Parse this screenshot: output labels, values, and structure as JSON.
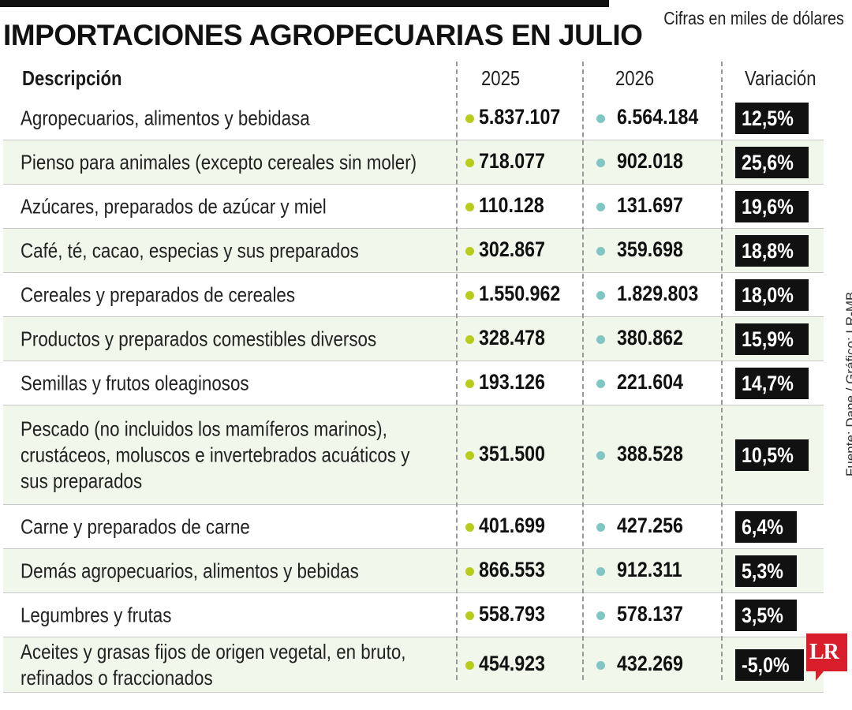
{
  "title": "IMPORTACIONES AGROPECUARIAS EN JULIO",
  "units_note": "Cifras en miles de dólares",
  "source_credit": "Fuente: Dane / Gráfico: LR-MB",
  "logo_text": "LR",
  "colors": {
    "year1_dot": "#b8cc1c",
    "year2_dot": "#7fc6c4",
    "badge_bg": "#111111",
    "alt_row_bg": "#f1f7ea",
    "logo_bg": "#d81e2a"
  },
  "headers": {
    "description": "Descripción",
    "year1": "2025",
    "year2": "2026",
    "variation": "Variación"
  },
  "chart_data": {
    "type": "table",
    "title": "IMPORTACIONES AGROPECUARIAS EN JULIO",
    "columns": [
      "Descripción",
      "2025",
      "2026",
      "Variación"
    ],
    "rows": [
      {
        "description": "Agropecuarios, alimentos y bebidasa",
        "y2025": "5.837.107",
        "y2026": "6.564.184",
        "variation": "12,5%"
      },
      {
        "description": "Pienso para animales (excepto cereales sin moler)",
        "y2025": "718.077",
        "y2026": "902.018",
        "variation": "25,6%"
      },
      {
        "description": "Azúcares, preparados de azúcar y miel",
        "y2025": "110.128",
        "y2026": "131.697",
        "variation": "19,6%"
      },
      {
        "description": "Café, té, cacao, especias y sus preparados",
        "y2025": "302.867",
        "y2026": "359.698",
        "variation": "18,8%"
      },
      {
        "description": "Cereales y preparados de cereales",
        "y2025": "1.550.962",
        "y2026": "1.829.803",
        "variation": "18,0%"
      },
      {
        "description": "Productos y preparados comestibles diversos",
        "y2025": "328.478",
        "y2026": "380.862",
        "variation": "15,9%"
      },
      {
        "description": "Semillas y frutos oleaginosos",
        "y2025": "193.126",
        "y2026": "221.604",
        "variation": "14,7%"
      },
      {
        "description": "Pescado (no incluidos los mamíferos marinos), crustáceos, moluscos e invertebrados acuáticos y sus preparados",
        "y2025": "351.500",
        "y2026": "388.528",
        "variation": "10,5%"
      },
      {
        "description": "Carne y preparados de carne",
        "y2025": "401.699",
        "y2026": "427.256",
        "variation": "6,4%"
      },
      {
        "description": "Demás agropecuarios, alimentos y bebidas",
        "y2025": "866.553",
        "y2026": "912.311",
        "variation": "5,3%"
      },
      {
        "description": "Legumbres y frutas",
        "y2025": "558.793",
        "y2026": "578.137",
        "variation": "3,5%"
      },
      {
        "description": "Aceites y grasas fijos de origen vegetal, en bruto, refinados o fraccionados",
        "y2025": "454.923",
        "y2026": "432.269",
        "variation": "-5,0%"
      }
    ]
  }
}
